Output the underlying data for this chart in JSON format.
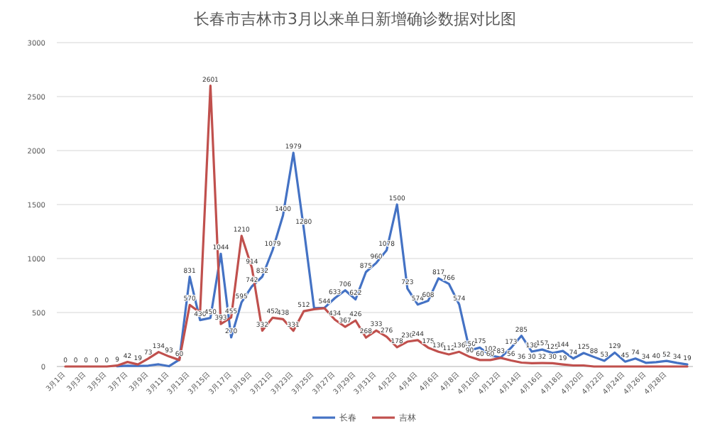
{
  "chart_data": {
    "type": "line",
    "title": "长春市吉林市3月以来单日新增确诊数据对比图",
    "categories": [
      "3月1日",
      null,
      "3月3日",
      null,
      "3月5日",
      null,
      "3月7日",
      null,
      "3月9日",
      null,
      "3月11日",
      null,
      "3月13日",
      null,
      "3月15日",
      null,
      "3月17日",
      null,
      "3月19日",
      null,
      "3月21日",
      null,
      "3月23日",
      null,
      "3月25日",
      null,
      "3月27日",
      null,
      "3月29日",
      null,
      "3月31日",
      null,
      "4月2日",
      null,
      "4月4日",
      null,
      "4月6日",
      null,
      "4月8日",
      null,
      "4月10日",
      null,
      "4月12日",
      null,
      "4月14日",
      null,
      "4月16日",
      null,
      "4月18日",
      null,
      "4月20日",
      null,
      "4月22日",
      null,
      "4月24日",
      null,
      "4月26日",
      null,
      "4月28日",
      null,
      null
    ],
    "series": [
      {
        "name": "长春",
        "color": "#4472c4",
        "values": [
          null,
          null,
          null,
          null,
          null,
          2,
          7,
          5,
          8,
          20,
          3,
          63,
          831,
          430,
          450,
          1044,
          270,
          595,
          742,
          832,
          1079,
          1400,
          1979,
          1280,
          540,
          544,
          633,
          706,
          622,
          875,
          960,
          1078,
          1500,
          723,
          574,
          608,
          817,
          766,
          574,
          150,
          175,
          102,
          83,
          173,
          285,
          138,
          157,
          125,
          144,
          74,
          125,
          88,
          53,
          129,
          45,
          74,
          34,
          40,
          52,
          34,
          19
        ],
        "value_labels": [
          null,
          null,
          null,
          null,
          null,
          null,
          null,
          null,
          null,
          null,
          null,
          null,
          "831",
          "430",
          "450",
          "1044",
          "270",
          "595",
          "742",
          "832",
          "1079",
          "1400",
          "1979",
          "1280",
          null,
          "544",
          "633",
          "706",
          "622",
          "875",
          "960",
          "1078",
          "1500",
          "723",
          "574",
          "608",
          "817",
          "766",
          "574",
          "150",
          "175",
          "102",
          "83",
          "173",
          "285",
          "138",
          "157",
          "125",
          "144",
          "74",
          "125",
          "88",
          "53",
          "129",
          "45",
          "74",
          "34",
          "40",
          "52",
          "34",
          "19"
        ]
      },
      {
        "name": "吉林",
        "color": "#c0504d",
        "values": [
          0,
          0,
          0,
          0,
          0,
          9,
          42,
          19,
          73,
          134,
          93,
          60,
          570,
          500,
          2601,
          393,
          455,
          1210,
          914,
          332,
          452,
          438,
          331,
          512,
          530,
          540,
          434,
          367,
          426,
          268,
          333,
          276,
          178,
          230,
          244,
          175,
          136,
          112,
          136,
          90,
          60,
          60,
          80,
          56,
          36,
          30,
          32,
          30,
          19,
          10,
          10,
          0,
          0,
          0,
          0,
          0,
          0,
          0,
          0,
          0,
          0
        ],
        "value_labels": [
          "0",
          "0",
          "0",
          "0",
          "0",
          "9",
          "42",
          "19",
          "73",
          "134",
          "93",
          "60",
          "570",
          null,
          "2601",
          "393",
          "455",
          "1210",
          "914",
          "332",
          "452",
          "438",
          "331",
          "512",
          null,
          null,
          "434",
          "367",
          "426",
          "268",
          "333",
          "276",
          "178",
          "230",
          "244",
          "175",
          "136",
          "112",
          "136",
          "90",
          "60",
          "60",
          null,
          "56",
          "36",
          "30",
          "32",
          "30",
          "19",
          null,
          null,
          null,
          null,
          null,
          null,
          null,
          null,
          null,
          null,
          null,
          null
        ]
      }
    ],
    "ylim": [
      0,
      3000
    ],
    "yticks": [
      0,
      500,
      1000,
      1500,
      2000,
      2500,
      3000
    ],
    "grid": "y",
    "legend": "bottom",
    "marker": "none",
    "line_style": "solid"
  }
}
